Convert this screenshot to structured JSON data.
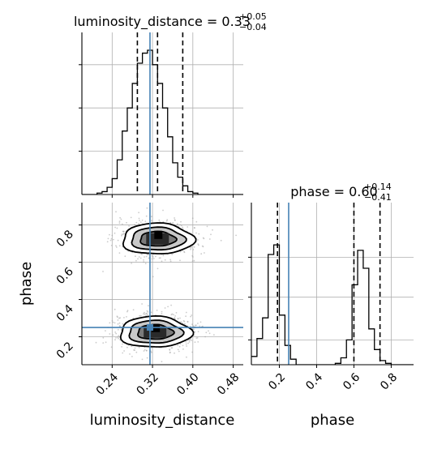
{
  "chart_data": {
    "type": "corner",
    "parameters": [
      {
        "name": "luminosity_distance",
        "range": [
          0.18,
          0.5
        ],
        "ticks": [
          "0.24",
          "0.32",
          "0.40",
          "0.48"
        ],
        "tick_values": [
          0.24,
          0.32,
          0.4,
          0.48
        ],
        "title_prefix": "luminosity_distance = 0.33",
        "title_plus": "+0.05",
        "title_minus": "−0.04",
        "quantiles": [
          0.29,
          0.33,
          0.38
        ],
        "truth": 0.315,
        "hist_edges_start": 0.18,
        "hist_bin_width": 0.01,
        "hist_counts": [
          0,
          0,
          0,
          0.01,
          0.02,
          0.05,
          0.11,
          0.24,
          0.44,
          0.6,
          0.77,
          0.91,
          0.98,
          1.0,
          0.9,
          0.77,
          0.6,
          0.4,
          0.22,
          0.12,
          0.06,
          0.02,
          0.01,
          0,
          0,
          0,
          0,
          0,
          0,
          0,
          0,
          0
        ]
      },
      {
        "name": "phase",
        "range": [
          0.05,
          0.92
        ],
        "ticks": [
          "0.2",
          "0.4",
          "0.6",
          "0.8"
        ],
        "tick_values": [
          0.2,
          0.4,
          0.6,
          0.8
        ],
        "title_prefix": "phase = 0.60",
        "title_plus": "+0.14",
        "title_minus": "−0.41",
        "quantiles": [
          0.19,
          0.6,
          0.74
        ],
        "truth": 0.25,
        "hist_edges_start": 0.05,
        "hist_bin_width": 0.03,
        "hist_counts": [
          0.06,
          0.19,
          0.34,
          0.8,
          0.87,
          0.36,
          0.14,
          0.04,
          0,
          0,
          0,
          0,
          0,
          0,
          0,
          0.01,
          0.05,
          0.18,
          0.58,
          0.83,
          0.7,
          0.26,
          0.11,
          0.03,
          0.01,
          0,
          0,
          0,
          0
        ]
      }
    ],
    "modes_2d": [
      {
        "x": 0.33,
        "y": 0.725
      },
      {
        "x": 0.325,
        "y": 0.225
      }
    ],
    "grid": true
  }
}
